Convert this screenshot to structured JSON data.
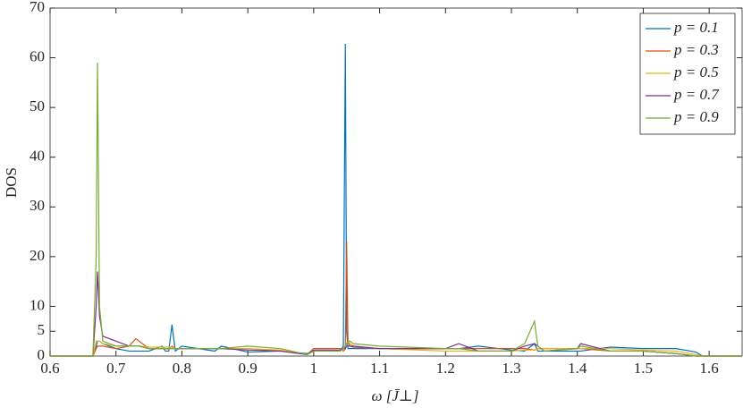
{
  "chart_data": {
    "type": "line",
    "xlabel": "ω [J̄⊥]",
    "ylabel": "DOS",
    "x": [
      0.6,
      0.66,
      0.665,
      0.67,
      0.672,
      0.675,
      0.68,
      0.7,
      0.72,
      0.73,
      0.735,
      0.75,
      0.77,
      0.775,
      0.78,
      0.785,
      0.79,
      0.8,
      0.85,
      0.86,
      0.9,
      0.95,
      0.99,
      1.0,
      1.04,
      1.045,
      1.048,
      1.05,
      1.052,
      1.055,
      1.06,
      1.1,
      1.2,
      1.22,
      1.25,
      1.3,
      1.32,
      1.335,
      1.34,
      1.35,
      1.4,
      1.405,
      1.45,
      1.5,
      1.55,
      1.58,
      1.59,
      1.65
    ],
    "series": [
      {
        "name": "p = 0.1",
        "color": "#0072bd",
        "values": [
          0,
          0,
          0,
          2,
          3,
          3,
          2.5,
          1.5,
          1,
          1,
          1,
          1,
          2,
          1,
          1,
          6.3,
          1,
          2,
          1,
          2,
          0.8,
          1,
          0.5,
          1,
          1,
          2,
          62.8,
          5,
          1.5,
          1.5,
          1.5,
          1.5,
          1.5,
          1.5,
          2,
          1.2,
          1,
          2.5,
          1,
          1,
          1,
          1,
          1.8,
          1.5,
          1.5,
          0.8,
          0,
          0
        ]
      },
      {
        "name": "p = 0.3",
        "color": "#d95319",
        "values": [
          0,
          0,
          0,
          1.5,
          2,
          2,
          2,
          1.5,
          2,
          3.5,
          3,
          1.5,
          1.5,
          1.5,
          1.5,
          2,
          1.5,
          1.5,
          1.5,
          1.5,
          1.5,
          1,
          0.3,
          1.5,
          1.5,
          1,
          1.5,
          23,
          3,
          2,
          1.8,
          1.5,
          1.5,
          1.5,
          1.5,
          1.5,
          1.5,
          1.2,
          1.5,
          1.5,
          1.5,
          1.5,
          1,
          1,
          0.5,
          0,
          0,
          0
        ]
      },
      {
        "name": "p = 0.5",
        "color": "#edb120",
        "values": [
          0,
          0,
          0,
          3,
          3,
          3,
          2.5,
          2,
          2,
          2,
          2,
          1.8,
          1.8,
          1.8,
          1.8,
          1.8,
          1.5,
          1.5,
          1.5,
          1.5,
          1.5,
          1.2,
          0.3,
          1,
          1,
          1.5,
          2,
          2.5,
          3,
          2.5,
          2,
          1.5,
          1,
          1,
          1,
          1,
          1.2,
          1.2,
          1.5,
          1.5,
          1.5,
          1.5,
          1.5,
          1.2,
          1,
          0.3,
          0,
          0
        ]
      },
      {
        "name": "p = 0.7",
        "color": "#7e2f8e",
        "values": [
          0,
          0,
          0,
          10,
          17,
          8,
          4,
          3,
          2,
          2,
          2,
          1.5,
          1.5,
          1.5,
          1.5,
          1.5,
          1.5,
          1.5,
          1.5,
          1.5,
          1.2,
          1,
          0.3,
          1.2,
          1.2,
          1.5,
          1.5,
          2,
          2,
          2,
          2,
          1.5,
          1.5,
          2.5,
          1,
          1,
          2,
          2.5,
          2,
          1,
          1.5,
          2.5,
          1,
          1,
          0.5,
          0,
          0,
          0
        ]
      },
      {
        "name": "p = 0.9",
        "color": "#77ac30",
        "values": [
          0,
          0,
          0,
          20,
          59,
          10,
          3,
          2,
          2,
          2,
          2,
          1.5,
          1.5,
          1.5,
          1.5,
          1.5,
          1.5,
          1.5,
          1.5,
          1.5,
          2,
          1.5,
          0.3,
          1,
          1,
          1.5,
          2,
          2.5,
          3,
          3,
          2.5,
          2,
          1.5,
          1.5,
          1,
          1,
          2.5,
          7,
          2,
          1,
          1.5,
          2,
          1,
          1,
          0.5,
          0,
          0,
          0
        ]
      }
    ],
    "xlim": [
      0.6,
      1.65
    ],
    "ylim": [
      0,
      70
    ],
    "xticks": [
      {
        "value": 0.6,
        "label": "0.6"
      },
      {
        "value": 0.7,
        "label": "0.7"
      },
      {
        "value": 0.8,
        "label": "0.8"
      },
      {
        "value": 0.9,
        "label": "0.9"
      },
      1,
      1.1,
      1.2,
      1.3,
      1.4,
      1.5,
      1.6
    ],
    "yticks": [
      0,
      5,
      10,
      20,
      30,
      40,
      50,
      60,
      70
    ],
    "legend": "upper right"
  }
}
